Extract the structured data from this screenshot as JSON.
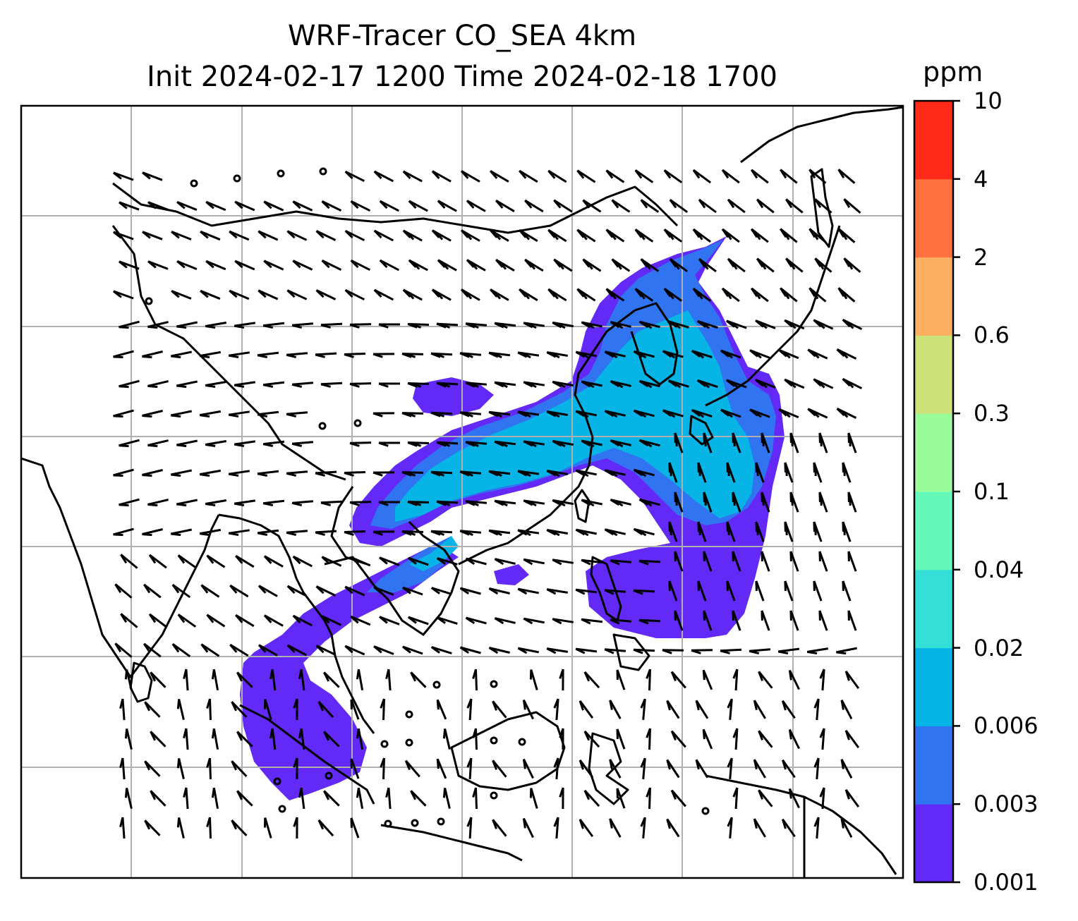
{
  "title": {
    "line1": "WRF-Tracer CO_SEA 4km",
    "line2": "Init 2024-02-17 1200 Time 2024-02-18 1700"
  },
  "colorbar": {
    "unit": "ppm",
    "levels": [
      "0.001",
      "0.003",
      "0.006",
      "0.02",
      "0.04",
      "0.1",
      "0.3",
      "0.6",
      "2",
      "4",
      "10"
    ],
    "colors": [
      "#6329f7",
      "#3174f2",
      "#06b4e6",
      "#33dfd6",
      "#65f8bb",
      "#99fb99",
      "#cce178",
      "#fdb062",
      "#ff7240",
      "#ff2a17"
    ]
  },
  "map": {
    "gridlines": true,
    "gridline_color": "#b0b0b0",
    "coastline_color": "#000000",
    "wind_barb_color": "#000000"
  }
}
